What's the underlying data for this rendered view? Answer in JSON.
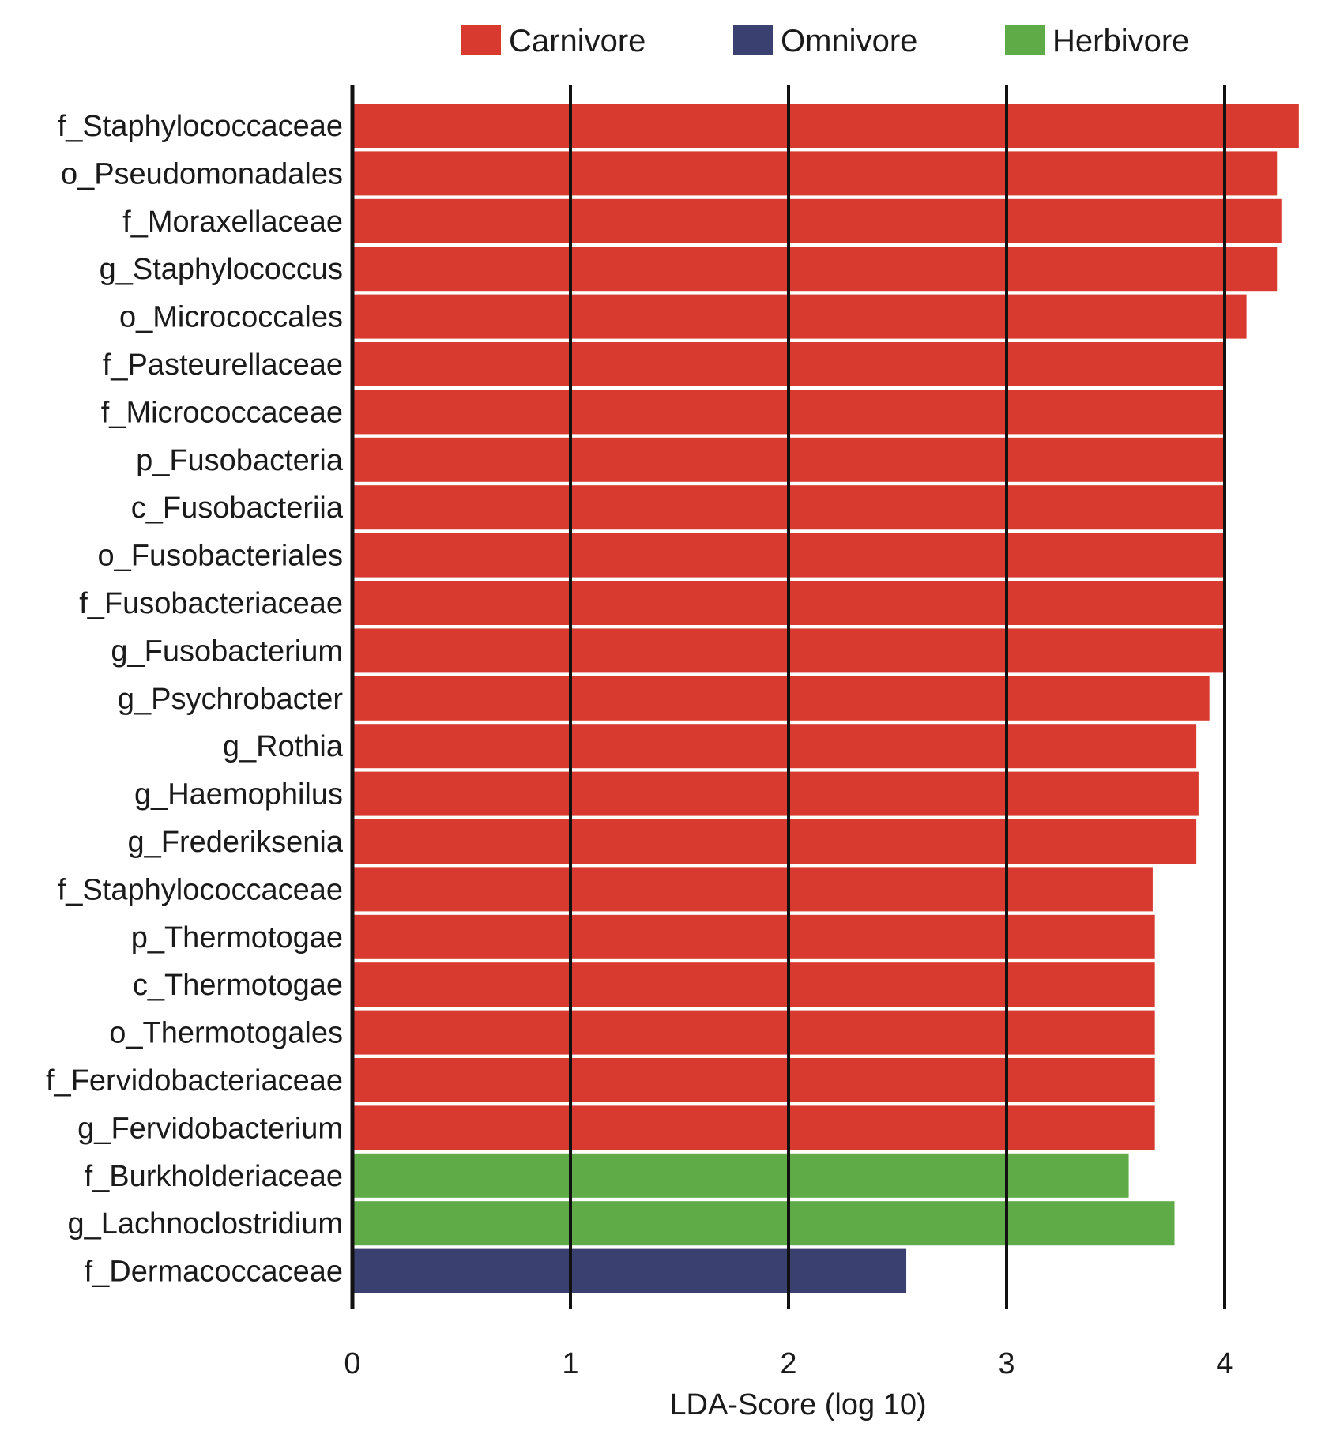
{
  "chart_data": {
    "type": "bar",
    "orientation": "horizontal",
    "title": "",
    "xlabel": "LDA-Score (log 10)",
    "ylabel": "",
    "xlim": [
      0,
      4.35
    ],
    "xticks": [
      0,
      1,
      2,
      3,
      4
    ],
    "grid": "vertical lines at x ticks",
    "legend": {
      "placement": "top-center",
      "entries": [
        {
          "name": "Carnivore",
          "color": "#d93a30"
        },
        {
          "name": "Omnivore",
          "color": "#3a4170"
        },
        {
          "name": "Herbivore",
          "color": "#5eab47"
        }
      ]
    },
    "categories": [
      "f_Staphylococcaceae",
      "o_Pseudomonadales",
      "f_Moraxellaceae",
      "g_Staphylococcus",
      "o_Micrococcales",
      "f_Pasteurellaceae",
      "f_Micrococcaceae",
      "p_Fusobacteria",
      "c_Fusobacteriia",
      "o_Fusobacteriales",
      "f_Fusobacteriaceae",
      "g_Fusobacterium",
      "g_Psychrobacter",
      "g_Rothia",
      "g_Haemophilus",
      "g_Frederiksenia",
      "f_Staphylococcaceae",
      "p_Thermotogae",
      "c_Thermotogae",
      "o_Thermotogales",
      "f_Fervidobacteriaceae",
      "g_Fervidobacterium",
      "f_Burkholderiaceae",
      "g_Lachnoclostridium",
      "f_Dermacoccaceae"
    ],
    "values": [
      4.34,
      4.24,
      4.26,
      4.24,
      4.1,
      4.0,
      4.0,
      4.0,
      4.0,
      4.0,
      4.0,
      4.0,
      3.93,
      3.87,
      3.88,
      3.87,
      3.67,
      3.68,
      3.68,
      3.68,
      3.68,
      3.68,
      3.56,
      3.77,
      2.54
    ],
    "groups": [
      "Carnivore",
      "Carnivore",
      "Carnivore",
      "Carnivore",
      "Carnivore",
      "Carnivore",
      "Carnivore",
      "Carnivore",
      "Carnivore",
      "Carnivore",
      "Carnivore",
      "Carnivore",
      "Carnivore",
      "Carnivore",
      "Carnivore",
      "Carnivore",
      "Carnivore",
      "Carnivore",
      "Carnivore",
      "Carnivore",
      "Carnivore",
      "Carnivore",
      "Herbivore",
      "Herbivore",
      "Omnivore"
    ]
  }
}
